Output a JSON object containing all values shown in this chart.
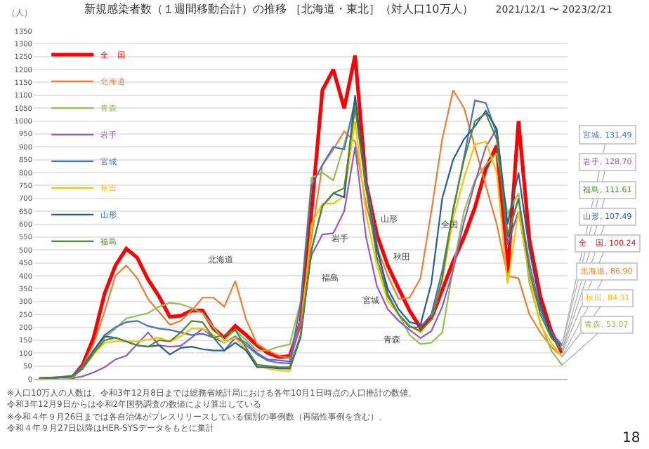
{
  "chart_data": {
    "type": "line",
    "title": "新規感染者数（１週間移動合計）の推移 ［北海道・東北］（対人口10万人）",
    "subtitle": "2021/12/1 〜 2023/2/21",
    "ylabel": "（人）",
    "categories": [
      null,
      null,
      null,
      null,
      null,
      null,
      null,
      null,
      null,
      null,
      null,
      null,
      null,
      null,
      null,
      null,
      null,
      null,
      null,
      null,
      null,
      null,
      null,
      null,
      null,
      null,
      null,
      null,
      null,
      null,
      null,
      null,
      null,
      null,
      null,
      null,
      null,
      null,
      null,
      null,
      null,
      null,
      null,
      null,
      null,
      null,
      null,
      null,
      null
    ],
    "series": [
      {
        "name": "全　国",
        "color": "#ff0000",
        "values": [
          0,
          1,
          3,
          4,
          55,
          160,
          330,
          440,
          505,
          470,
          385,
          320,
          240,
          245,
          265,
          265,
          195,
          160,
          205,
          170,
          130,
          100,
          85,
          88,
          220,
          650,
          1120,
          1200,
          1050,
          1255,
          760,
          560,
          440,
          350,
          265,
          198,
          235,
          345,
          455,
          550,
          665,
          815,
          905,
          410,
          1000,
          540,
          320,
          185,
          100.24
        ],
        "value_labels": [
          null,
          null,
          null,
          null,
          null,
          null,
          null,
          null,
          null,
          null,
          null,
          null,
          null,
          null,
          null,
          null,
          null,
          null,
          null,
          null,
          null,
          null,
          null,
          null,
          null,
          null,
          null,
          null,
          null,
          null,
          null,
          null,
          null,
          null,
          null,
          null,
          null,
          null,
          null,
          null,
          null,
          null,
          null,
          null,
          null,
          null,
          null,
          null,
          "全　国, 100.24"
        ]
      },
      {
        "name": "北海道",
        "color": "#ed7d31",
        "values": [
          0,
          1,
          3,
          4,
          50,
          135,
          260,
          400,
          440,
          390,
          310,
          260,
          210,
          225,
          265,
          315,
          315,
          280,
          380,
          230,
          135,
          110,
          90,
          81,
          225,
          550,
          830,
          890,
          960,
          920,
          680,
          510,
          400,
          310,
          315,
          390,
          650,
          930,
          1120,
          1050,
          900,
          750,
          600,
          400,
          390,
          250,
          180,
          125,
          86.9
        ],
        "value_labels": [
          null,
          null,
          null,
          null,
          null,
          null,
          null,
          null,
          null,
          null,
          null,
          null,
          null,
          null,
          null,
          null,
          null,
          null,
          null,
          null,
          null,
          null,
          null,
          null,
          null,
          null,
          null,
          null,
          null,
          null,
          null,
          null,
          null,
          null,
          null,
          null,
          null,
          null,
          null,
          null,
          null,
          null,
          null,
          null,
          null,
          null,
          null,
          null,
          "北海道, 86.90"
        ]
      },
      {
        "name": "青森",
        "color": "#92c050",
        "values": [
          0,
          1,
          2,
          3,
          40,
          95,
          160,
          195,
          235,
          245,
          255,
          280,
          295,
          290,
          275,
          255,
          200,
          150,
          190,
          150,
          110,
          110,
          125,
          133,
          300,
          780,
          800,
          770,
          910,
          1060,
          760,
          520,
          320,
          250,
          170,
          135,
          140,
          180,
          430,
          650,
          770,
          830,
          875,
          640,
          720,
          370,
          220,
          110,
          53.07
        ],
        "value_labels": [
          null,
          null,
          null,
          null,
          null,
          null,
          null,
          null,
          null,
          null,
          null,
          null,
          null,
          null,
          null,
          null,
          null,
          null,
          null,
          null,
          null,
          null,
          null,
          null,
          null,
          null,
          null,
          null,
          null,
          null,
          null,
          null,
          null,
          null,
          null,
          null,
          null,
          null,
          null,
          null,
          null,
          null,
          null,
          null,
          null,
          null,
          null,
          null,
          "青森, 53.07"
        ]
      },
      {
        "name": "岩手",
        "color": "#8e5bc4",
        "values": [
          0,
          0,
          1,
          2,
          10,
          25,
          45,
          75,
          90,
          135,
          180,
          130,
          125,
          128,
          160,
          195,
          160,
          140,
          165,
          130,
          95,
          70,
          62,
          60,
          220,
          480,
          560,
          565,
          650,
          900,
          550,
          360,
          270,
          225,
          190,
          158,
          185,
          280,
          420,
          610,
          760,
          900,
          970,
          560,
          700,
          450,
          270,
          165,
          128.7
        ],
        "value_labels": [
          null,
          null,
          null,
          null,
          null,
          null,
          null,
          null,
          null,
          null,
          null,
          null,
          null,
          null,
          null,
          null,
          null,
          null,
          null,
          null,
          null,
          null,
          null,
          null,
          null,
          null,
          null,
          null,
          null,
          null,
          null,
          null,
          null,
          null,
          null,
          null,
          null,
          null,
          null,
          null,
          null,
          null,
          null,
          null,
          null,
          null,
          null,
          null,
          "岩手, 128.70"
        ]
      },
      {
        "name": "宮城",
        "color": "#4472c4",
        "values": [
          0,
          4,
          8,
          12,
          50,
          110,
          170,
          200,
          220,
          225,
          205,
          195,
          190,
          180,
          170,
          175,
          160,
          110,
          160,
          140,
          100,
          75,
          72,
          67,
          290,
          750,
          830,
          900,
          890,
          1080,
          770,
          520,
          330,
          250,
          200,
          200,
          250,
          420,
          650,
          860,
          1080,
          1070,
          950,
          520,
          650,
          400,
          270,
          180,
          131.49
        ],
        "value_labels": [
          null,
          null,
          null,
          null,
          null,
          null,
          null,
          null,
          null,
          null,
          null,
          null,
          null,
          null,
          null,
          null,
          null,
          null,
          null,
          null,
          null,
          null,
          null,
          null,
          null,
          null,
          null,
          null,
          null,
          null,
          null,
          null,
          null,
          null,
          null,
          null,
          null,
          null,
          null,
          null,
          null,
          null,
          null,
          null,
          null,
          null,
          null,
          null,
          "宮城, 131.49"
        ]
      },
      {
        "name": "秋田",
        "color": "#ffc000",
        "values": [
          0,
          2,
          3,
          5,
          40,
          95,
          140,
          145,
          145,
          145,
          152,
          160,
          145,
          165,
          195,
          195,
          170,
          140,
          160,
          110,
          50,
          40,
          32,
          30,
          170,
          600,
          680,
          680,
          710,
          1000,
          640,
          440,
          300,
          250,
          205,
          180,
          230,
          380,
          620,
          780,
          910,
          920,
          800,
          370,
          650,
          400,
          210,
          140,
          84.31
        ],
        "value_labels": [
          null,
          null,
          null,
          null,
          null,
          null,
          null,
          null,
          null,
          null,
          null,
          null,
          null,
          null,
          null,
          null,
          null,
          null,
          null,
          null,
          null,
          null,
          null,
          null,
          null,
          null,
          null,
          null,
          null,
          null,
          null,
          null,
          null,
          null,
          null,
          null,
          null,
          null,
          null,
          null,
          null,
          null,
          null,
          null,
          null,
          null,
          null,
          null,
          "秋田, 84.31"
        ]
      },
      {
        "name": "山形",
        "color": "#255e91",
        "values": [
          0,
          3,
          6,
          9,
          40,
          110,
          165,
          160,
          145,
          130,
          125,
          130,
          95,
          120,
          125,
          115,
          110,
          110,
          140,
          110,
          45,
          45,
          40,
          40,
          160,
          500,
          670,
          720,
          705,
          1100,
          750,
          500,
          350,
          270,
          220,
          210,
          370,
          700,
          850,
          930,
          980,
          1040,
          970,
          600,
          800,
          500,
          290,
          170,
          107.49
        ],
        "value_labels": [
          null,
          null,
          null,
          null,
          null,
          null,
          null,
          null,
          null,
          null,
          null,
          null,
          null,
          null,
          null,
          null,
          null,
          null,
          null,
          null,
          null,
          null,
          null,
          null,
          null,
          null,
          null,
          null,
          null,
          null,
          null,
          null,
          null,
          null,
          null,
          null,
          null,
          null,
          null,
          null,
          null,
          null,
          null,
          null,
          null,
          null,
          null,
          null,
          "山形, 107.49"
        ]
      },
      {
        "name": "福島",
        "color": "#4e8a2f",
        "values": [
          0,
          3,
          5,
          7,
          40,
          100,
          150,
          160,
          145,
          130,
          125,
          150,
          145,
          180,
          225,
          220,
          160,
          170,
          190,
          120,
          55,
          50,
          45,
          45,
          170,
          500,
          670,
          720,
          740,
          1050,
          740,
          470,
          320,
          250,
          205,
          185,
          230,
          390,
          660,
          850,
          1000,
          1030,
          930,
          550,
          700,
          420,
          250,
          160,
          111.61
        ],
        "value_labels": [
          null,
          null,
          null,
          null,
          null,
          null,
          null,
          null,
          null,
          null,
          null,
          null,
          null,
          null,
          null,
          null,
          null,
          null,
          null,
          null,
          null,
          null,
          null,
          null,
          null,
          null,
          null,
          null,
          null,
          null,
          null,
          null,
          null,
          null,
          null,
          null,
          null,
          null,
          null,
          null,
          null,
          null,
          null,
          null,
          null,
          null,
          null,
          null,
          "福島, 111.61"
        ]
      }
    ],
    "ylim": [
      0,
      1350
    ],
    "yticks": [
      0,
      50,
      100,
      150,
      200,
      250,
      300,
      350,
      400,
      450,
      500,
      550,
      600,
      650,
      700,
      750,
      800,
      850,
      900,
      950,
      1000,
      1050,
      1100,
      1150,
      1200,
      1250,
      1300,
      1350
    ],
    "grid": "y",
    "legend": "top left",
    "tick_labels": "y",
    "marker": "none",
    "line_style": "solid",
    "annotations": [
      "北海道",
      "岩手",
      "福島",
      "山形",
      "秋田",
      "宮城",
      "青森",
      "全国",
      "※人口10万人の人数は、令和3年12月8日までは総務省統計局における各年10月1日時点の人口推計の数値、令和3年12月9日からは令和2年国勢調査の数値により算出している",
      "※令和４年９月26日までは各自治体がプレスリリースしている個別の事例数（再陽性事例を含む）、令和４年９月27日以降はHER-SYSデータをもとに集計",
      "18"
    ]
  }
}
